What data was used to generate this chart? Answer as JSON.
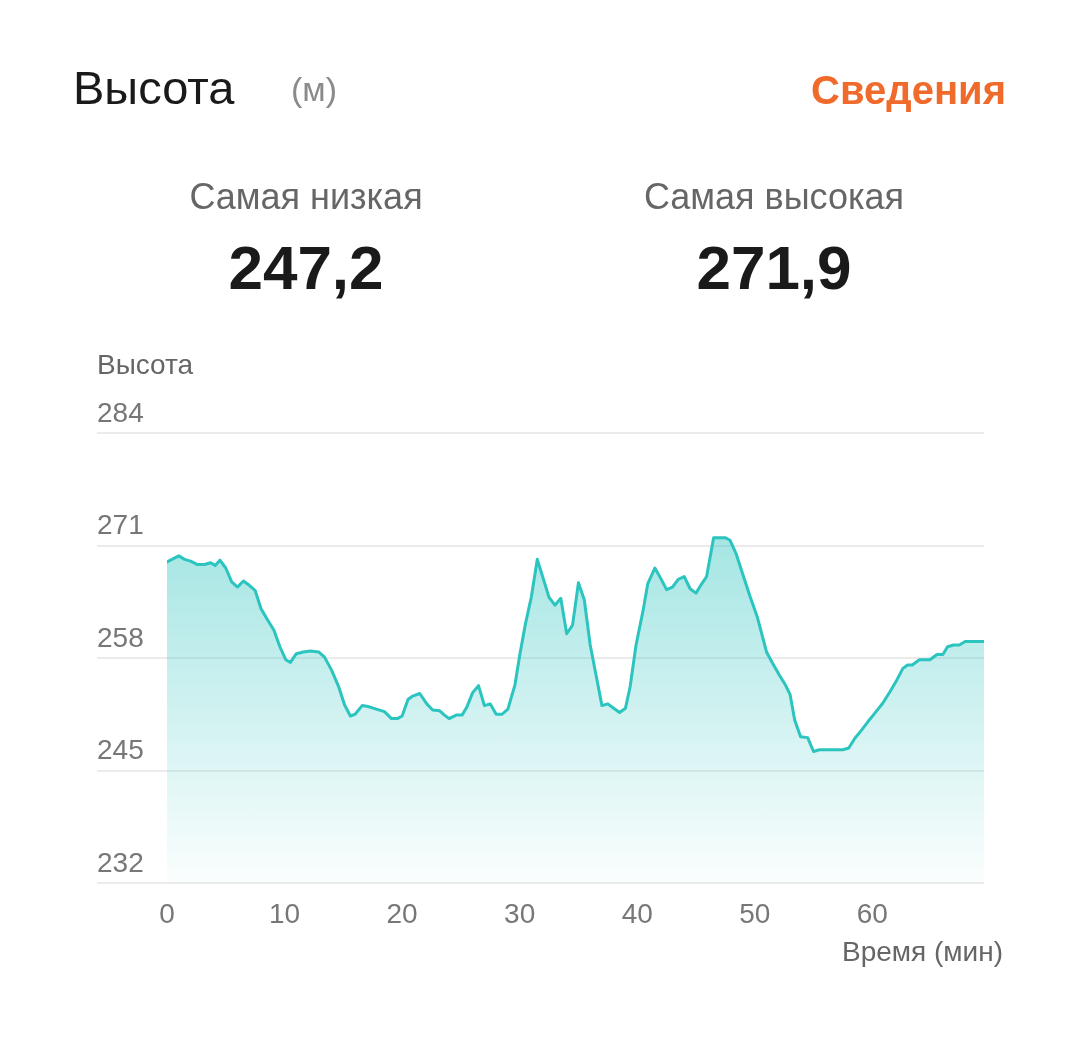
{
  "chart_data": {
    "type": "area",
    "title": "Высота",
    "subtitle": "(м)",
    "ylabel": "Высота",
    "xlabel": "Время (мин)",
    "annotations": [
      "Сведения",
      "Самая низкая",
      "247,2",
      "Самая высокая",
      "271,9"
    ],
    "x": [
      0,
      1.0,
      1.5,
      2.0,
      2.6,
      3.2,
      3.7,
      4.1,
      4.5,
      5.0,
      5.5,
      6.0,
      6.5,
      7.0,
      7.5,
      8.0,
      8.6,
      9.1,
      9.6,
      10.1,
      10.5,
      11.0,
      11.6,
      12.2,
      12.9,
      13.4,
      14.0,
      14.6,
      15.1,
      15.6,
      16.0,
      16.6,
      17.1,
      17.8,
      18.5,
      19.1,
      19.6,
      20.0,
      20.5,
      20.9,
      21.5,
      22.1,
      22.6,
      23.2,
      23.6,
      24.0,
      24.6,
      25.1,
      25.5,
      26.0,
      26.5,
      27.0,
      27.5,
      28.0,
      28.5,
      29.0,
      29.6,
      30.0,
      30.5,
      31.0,
      31.5,
      32.0,
      32.5,
      33.0,
      33.5,
      34.0,
      34.5,
      35.0,
      35.5,
      36.0,
      36.5,
      37.0,
      37.5,
      38.0,
      38.5,
      39.0,
      39.4,
      39.9,
      40.5,
      40.9,
      41.5,
      42.0,
      42.5,
      43.0,
      43.5,
      44.0,
      44.5,
      45.0,
      45.5,
      45.9,
      46.5,
      47.5,
      47.9,
      48.4,
      49.0,
      49.6,
      50.2,
      51.0,
      51.6,
      52.1,
      52.6,
      53.0,
      53.4,
      53.9,
      54.5,
      55.0,
      55.5,
      57.5,
      58.0,
      58.5,
      59.1,
      59.6,
      60.2,
      60.9,
      61.5,
      62.1,
      62.6,
      63.0,
      63.4,
      64.0,
      64.9,
      65.5,
      66.0,
      66.4,
      66.9,
      67.4,
      67.9,
      69.5
    ],
    "series": [
      {
        "color": "#2bc4bf",
        "values": [
          269.1,
          269.8,
          269.4,
          269.2,
          268.8,
          268.8,
          269.0,
          268.7,
          269.3,
          268.4,
          266.8,
          266.2,
          266.9,
          266.4,
          265.8,
          263.7,
          262.3,
          261.2,
          259.3,
          257.8,
          257.5,
          258.5,
          258.7,
          258.8,
          258.7,
          258.1,
          256.6,
          254.7,
          252.6,
          251.3,
          251.5,
          252.5,
          252.4,
          252.1,
          251.8,
          251.0,
          251.0,
          251.3,
          253.2,
          253.6,
          253.9,
          252.7,
          252.0,
          251.9,
          251.4,
          251.0,
          251.4,
          251.4,
          252.3,
          254.0,
          254.8,
          252.5,
          252.7,
          251.5,
          251.5,
          252.1,
          254.9,
          258.3,
          262.0,
          265.1,
          269.4,
          267.2,
          265.0,
          264.1,
          264.9,
          260.8,
          261.8,
          266.7,
          264.7,
          259.5,
          256.0,
          252.5,
          252.7,
          252.2,
          251.7,
          252.2,
          254.7,
          259.5,
          263.5,
          266.6,
          268.4,
          267.2,
          265.9,
          266.2,
          267.1,
          267.4,
          266.0,
          265.5,
          266.6,
          267.4,
          271.9,
          271.9,
          271.6,
          270.1,
          267.6,
          265.1,
          262.8,
          258.7,
          257.2,
          256.0,
          254.9,
          253.8,
          250.8,
          248.9,
          248.8,
          247.2,
          247.4,
          247.4,
          247.6,
          248.7,
          249.7,
          250.6,
          251.6,
          252.8,
          254.1,
          255.5,
          256.8,
          257.2,
          257.2,
          257.8,
          257.8,
          258.4,
          258.4,
          259.3,
          259.5,
          259.5,
          259.9,
          259.9
        ]
      }
    ],
    "xlim": [
      0,
      69.5
    ],
    "xticks": [
      0,
      10,
      20,
      30,
      40,
      50,
      60
    ],
    "ylim": [
      232,
      284
    ],
    "yticks": [
      232,
      245,
      258,
      271,
      284
    ],
    "grid": "y",
    "marker": "none"
  }
}
